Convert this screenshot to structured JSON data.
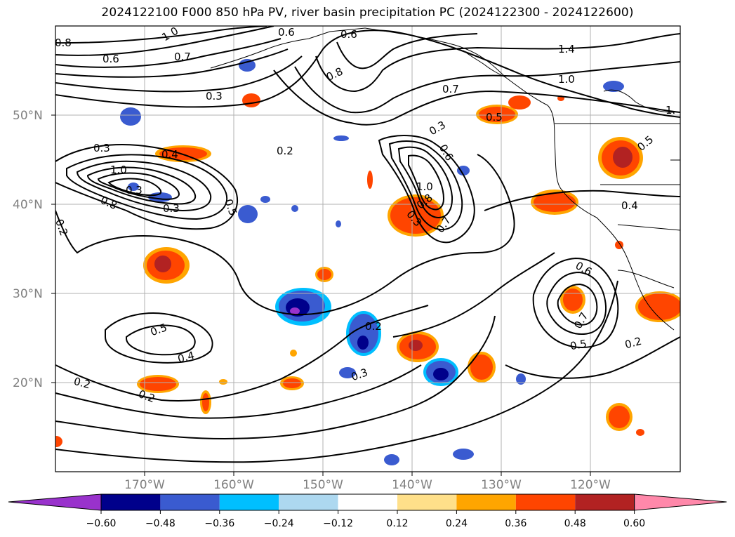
{
  "title": "2024122100 F000 850 hPa PV, river basin precipitation PC (2024122300 - 2024122600)",
  "map": {
    "projection": "plate-carree",
    "lon_range": [
      -180,
      -110
    ],
    "lat_range": [
      10,
      60
    ],
    "lat_labels": [
      "50°N",
      "40°N",
      "30°N",
      "20°N"
    ],
    "lon_labels": [
      "170°W",
      "160°W",
      "150°W",
      "140°W",
      "130°W",
      "120°W"
    ],
    "grid": true,
    "land_outline_color": "#000000"
  },
  "contour_labels": [
    "0.8",
    "1.0",
    "0.6",
    "0.7",
    "0.3",
    "0.6",
    "0.6",
    "0.8",
    "0.7",
    "1.4",
    "1.0",
    "1.",
    "0.3",
    "0.4",
    "0.2",
    "0.3",
    "0.5",
    "0.5",
    "1.0",
    "0.3",
    "0.8",
    "0.3",
    "0.6",
    "1.0",
    "0.8",
    "0.3",
    "0.7",
    "0.2",
    "0.4",
    "0.6",
    "0.5",
    "0.5",
    "0.4",
    "0.7",
    "0.5",
    "0.2",
    "0.3",
    "0.2",
    "0.2",
    "0.2"
  ],
  "colorbar": {
    "extend": "both",
    "levels": [
      -0.6,
      -0.48,
      -0.36,
      -0.24,
      -0.12,
      0.12,
      0.24,
      0.36,
      0.48,
      0.6
    ],
    "tick_labels": [
      "−0.60",
      "−0.48",
      "−0.36",
      "−0.24",
      "−0.12",
      "0.12",
      "0.24",
      "0.36",
      "0.48",
      "0.60"
    ],
    "colors": [
      "#9932cc",
      "#00008b",
      "#3a5bd0",
      "#00bfff",
      "#add8f0",
      "#ffffff",
      "#ffe08a",
      "#ffa500",
      "#ff4500",
      "#b22222",
      "#ff88aa"
    ]
  }
}
